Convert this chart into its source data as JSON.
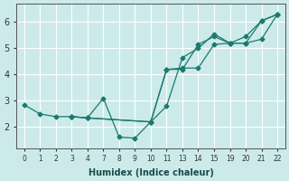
{
  "xlabel": "Humidex (Indice chaleur)",
  "bg_color": "#cceaea",
  "grid_color": "#ffffff",
  "line_color": "#1a7a6e",
  "xtick_labels": [
    "0",
    "1",
    "2",
    "3",
    "4",
    "7",
    "8",
    "9",
    "10",
    "11",
    "13",
    "14",
    "15",
    "19",
    "20",
    "21",
    "22"
  ],
  "yticks": [
    2,
    3,
    4,
    5,
    6
  ],
  "ylim": [
    1.2,
    6.7
  ],
  "series1_indices": [
    0,
    1,
    2,
    3,
    4,
    5,
    6,
    7,
    8,
    9,
    10,
    11,
    12,
    13,
    14,
    15,
    16
  ],
  "series1_y": [
    2.85,
    2.5,
    2.4,
    2.4,
    2.35,
    3.1,
    1.62,
    1.58,
    2.2,
    2.8,
    4.65,
    5.0,
    5.55,
    5.2,
    5.2,
    6.05,
    6.3
  ],
  "series2_indices": [
    3,
    4,
    8,
    9,
    10,
    11,
    12,
    13,
    14,
    15,
    16
  ],
  "series2_y": [
    2.4,
    2.35,
    2.2,
    4.2,
    4.2,
    5.15,
    5.45,
    5.2,
    5.45,
    6.05,
    6.3
  ],
  "series3_indices": [
    3,
    4,
    8,
    9,
    10,
    11,
    12,
    13,
    14,
    15,
    16
  ],
  "series3_y": [
    2.4,
    2.35,
    2.2,
    4.2,
    4.25,
    4.25,
    5.15,
    5.2,
    5.2,
    5.35,
    6.3
  ]
}
